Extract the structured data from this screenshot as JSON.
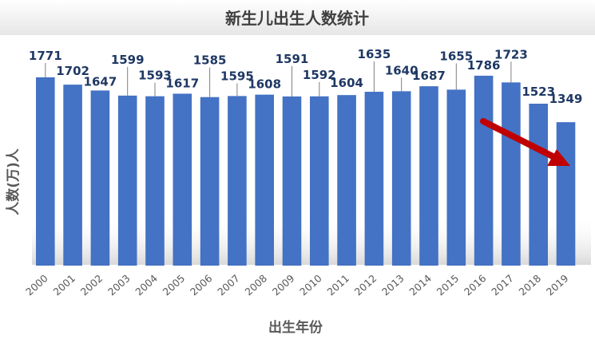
{
  "chart_data": {
    "type": "bar",
    "title": "新生儿出生人数统计",
    "xlabel": "出生年份",
    "ylabel": "人数(万)人",
    "categories": [
      "2000",
      "2001",
      "2002",
      "2003",
      "2004",
      "2005",
      "2006",
      "2007",
      "2008",
      "2009",
      "2010",
      "2011",
      "2012",
      "2013",
      "2014",
      "2015",
      "2016",
      "2017",
      "2018",
      "2019"
    ],
    "series": [
      {
        "values": [
          1771,
          1702,
          1647,
          1599,
          1593,
          1617,
          1585,
          1595,
          1608,
          1591,
          1592,
          1604,
          1635,
          1640,
          1687,
          1655,
          1786,
          1723,
          1523,
          1349
        ]
      }
    ],
    "data_labels": [
      "1771",
      "1702",
      "1647",
      "1599",
      "1593",
      "1617",
      "1585",
      "1595",
      "1608",
      "1591",
      "1592",
      "1604",
      "1635",
      "1640",
      "1687",
      "1655",
      "1786",
      "1723",
      "1523",
      "1349"
    ],
    "grid": false,
    "legend": "none",
    "annotation": "red-down-arrow",
    "colors": {
      "bar": "#4472C4",
      "title_text": "#404040",
      "axis_text": "#595959",
      "label_text": "#1F3864",
      "arrow": "#C00000"
    }
  }
}
